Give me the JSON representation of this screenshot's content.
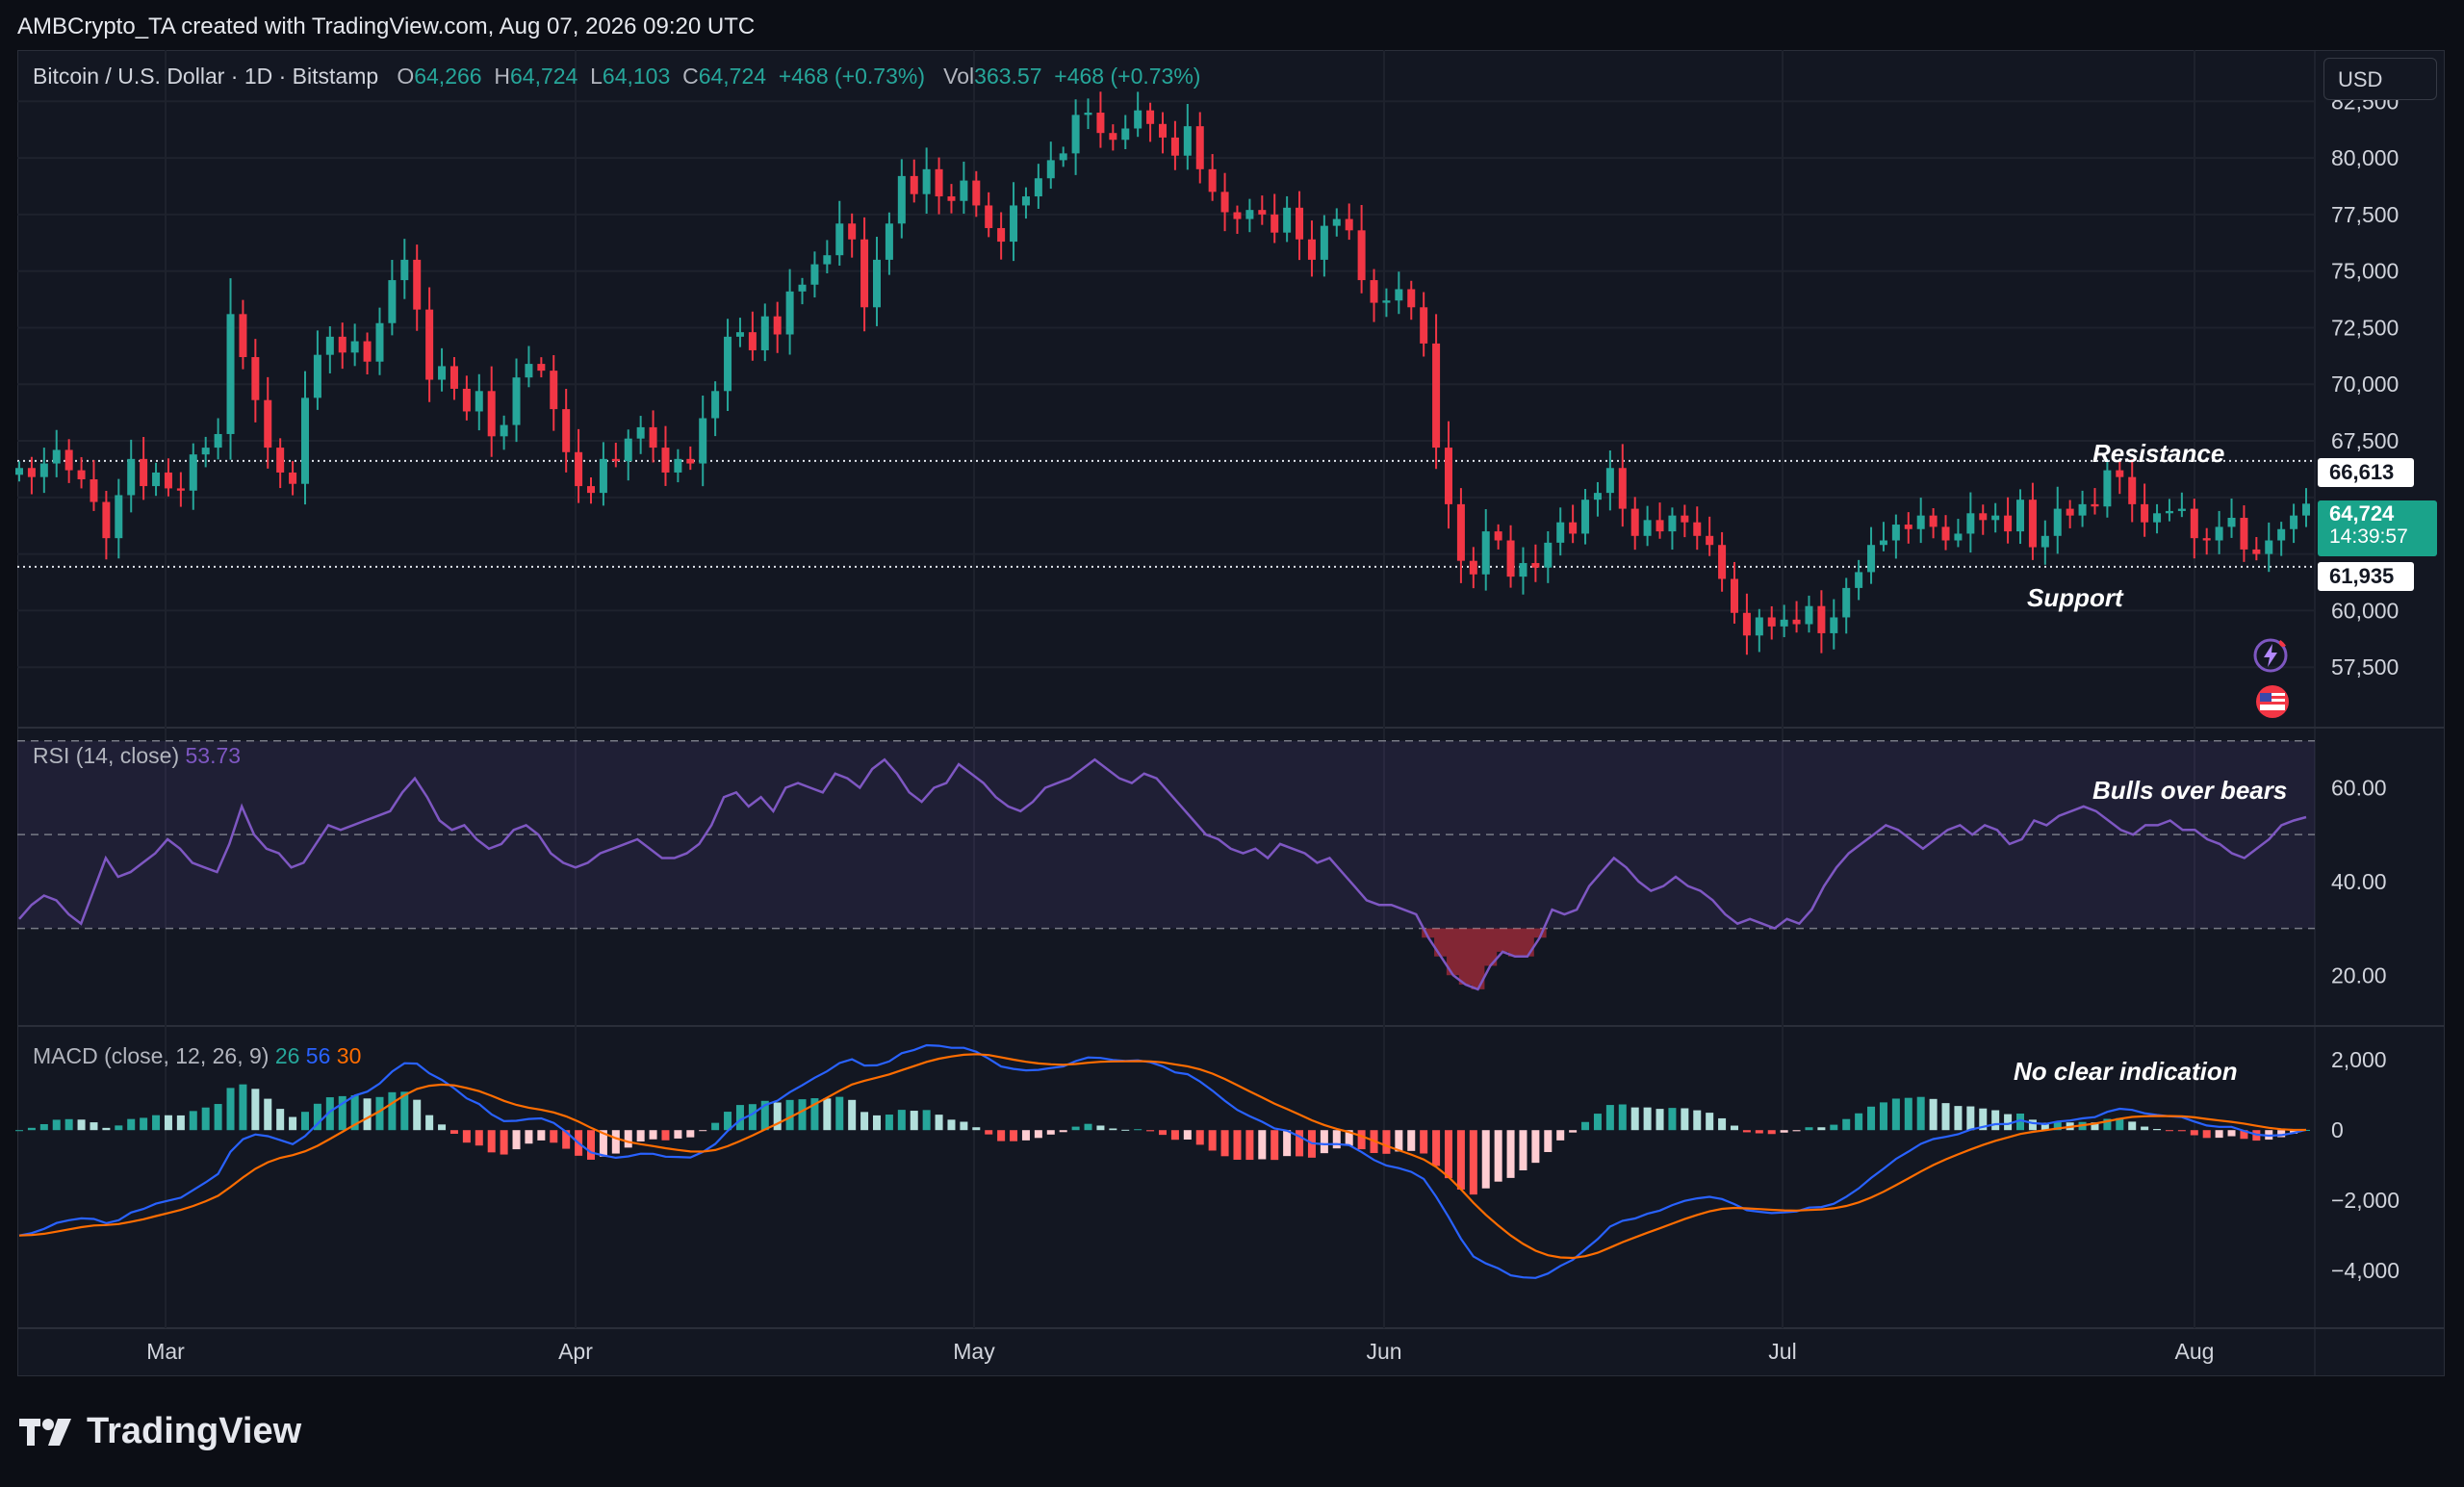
{
  "header": {
    "text": "AMBCrypto_TA created with TradingView.com, Aug 07, 2026 09:20 UTC"
  },
  "legend": {
    "symbol": "Bitcoin / U.S. Dollar · 1D · Bitstamp",
    "o_label": "O",
    "o": "64,266",
    "h_label": "H",
    "h": "64,724",
    "l_label": "L",
    "l": "64,103",
    "c_label": "C",
    "c": "64,724",
    "change": "+468 (+0.73%)",
    "vol_label": "Vol",
    "vol": "363.57",
    "vol_change": "+468 (+0.73%)"
  },
  "currency": "USD",
  "price_tags": {
    "resistance": "66,613",
    "support": "61,935",
    "last": "64,724",
    "countdown": "14:39:57"
  },
  "annotations": {
    "resistance": "Resistance",
    "support": "Support",
    "rsi": "Bulls over bears",
    "macd": "No clear indication"
  },
  "rsi_legend": {
    "label": "RSI (14, close)",
    "value": "53.73"
  },
  "macd_legend": {
    "label": "MACD (close, 12, 26, 9)",
    "v1": "26",
    "v2": "56",
    "v3": "30"
  },
  "footer": {
    "brand": "TradingView"
  },
  "colors": {
    "up": "#26a69a",
    "down": "#f23645",
    "rsi": "#7e57c2",
    "macd": "#2962ff",
    "signal": "#ff6d00",
    "hist_up": "#26a69a",
    "hist_down": "#ff5252"
  },
  "icons": [
    "lightning-icon",
    "us-flag-icon"
  ],
  "chart_data": [
    {
      "type": "candlestick",
      "title": "",
      "x_ticks": [
        "Mar",
        "Apr",
        "May",
        "Jun",
        "Jul",
        "Aug"
      ],
      "y_ticks": [
        57500,
        60000,
        62500,
        65000,
        67500,
        70000,
        72500,
        75000,
        77500,
        80000,
        82500
      ],
      "y_tick_labels": [
        "57,500",
        "60,000",
        "",
        "",
        "67,500",
        "70,000",
        "72,500",
        "75,000",
        "77,500",
        "80,000",
        "82,500"
      ],
      "ylim": [
        55000,
        84000
      ],
      "support": 61935,
      "resistance": 66613,
      "start_date": "2026-02-18",
      "end_date": "2026-08-07",
      "close": [
        66300,
        65900,
        66500,
        67100,
        66200,
        65800,
        64800,
        63200,
        65100,
        66700,
        65500,
        66100,
        65400,
        65300,
        66900,
        67200,
        67800,
        73100,
        71200,
        69300,
        67200,
        66100,
        65600,
        69400,
        71300,
        72100,
        71400,
        71900,
        71000,
        72700,
        74600,
        75500,
        73300,
        70200,
        70800,
        69800,
        68800,
        69700,
        67700,
        68200,
        70300,
        70900,
        70600,
        68900,
        67000,
        65500,
        65200,
        66700,
        66600,
        67600,
        68100,
        67200,
        66100,
        66700,
        66500,
        68500,
        69700,
        72100,
        72300,
        71500,
        73000,
        72200,
        74100,
        74400,
        75300,
        75700,
        77100,
        76400,
        73400,
        75500,
        77100,
        79200,
        78400,
        79500,
        78300,
        78100,
        79000,
        77900,
        76900,
        76300,
        77900,
        78300,
        79100,
        79900,
        80200,
        81900,
        82000,
        81100,
        80800,
        81300,
        82100,
        81500,
        80900,
        80100,
        81400,
        79500,
        78500,
        77600,
        77300,
        77700,
        77500,
        76700,
        77800,
        76400,
        75500,
        77000,
        77300,
        76800,
        74600,
        73600,
        73700,
        74200,
        73400,
        71800,
        67200,
        64700,
        62200,
        61600,
        63500,
        63100,
        61500,
        62100,
        61900,
        63000,
        63900,
        63400,
        64900,
        65200,
        66300,
        64500,
        63300,
        64000,
        63500,
        64200,
        63900,
        63300,
        62900,
        61400,
        59900,
        58900,
        59700,
        59300,
        59600,
        59400,
        60200,
        59000,
        59700,
        61000,
        61700,
        62900,
        63100,
        63800,
        63600,
        64200,
        63700,
        63100,
        63400,
        64300,
        64000,
        64200,
        63500,
        64900,
        62800,
        63300,
        64500,
        64200,
        64700,
        64600,
        66200,
        65900,
        64700,
        63900,
        64300,
        64400,
        64500,
        63200,
        63100,
        63700,
        64100,
        62700,
        62500,
        63100,
        63600,
        64200,
        64724
      ],
      "volume": "363.57"
    },
    {
      "type": "line",
      "title": "RSI (14, close)",
      "last_value": 53.73,
      "y_ticks": [
        20,
        40,
        60
      ],
      "ylim": [
        10,
        72
      ],
      "bands": [
        30,
        50,
        70
      ],
      "values": [
        32,
        35,
        37,
        36,
        33,
        31,
        38,
        45,
        41,
        42,
        44,
        46,
        49,
        47,
        44,
        43,
        42,
        48,
        56,
        50,
        47,
        46,
        43,
        44,
        48,
        52,
        51,
        52,
        53,
        54,
        55,
        59,
        62,
        58,
        53,
        51,
        52,
        49,
        47,
        48,
        51,
        52,
        50,
        46,
        44,
        43,
        44,
        46,
        47,
        48,
        49,
        47,
        45,
        45,
        46,
        48,
        52,
        58,
        59,
        56,
        58,
        55,
        60,
        61,
        60,
        59,
        63,
        62,
        60,
        64,
        66,
        63,
        59,
        57,
        60,
        61,
        65,
        63,
        61,
        58,
        56,
        55,
        57,
        60,
        61,
        62,
        64,
        66,
        64,
        62,
        61,
        63,
        62,
        59,
        56,
        53,
        50,
        49,
        47,
        46,
        47,
        45,
        48,
        47,
        46,
        44,
        45,
        42,
        39,
        36,
        35,
        35,
        34,
        33,
        28,
        24,
        20,
        18,
        17,
        22,
        25,
        24,
        24,
        28,
        34,
        33,
        34,
        39,
        42,
        45,
        43,
        40,
        38,
        39,
        41,
        39,
        38,
        36,
        33,
        31,
        32,
        31,
        30,
        32,
        31,
        34,
        39,
        43,
        46,
        48,
        50,
        52,
        51,
        49,
        47,
        49,
        51,
        52,
        50,
        52,
        51,
        48,
        49,
        53,
        52,
        54,
        55,
        56,
        55,
        53,
        51,
        50,
        52,
        52,
        53,
        51,
        51,
        49,
        48,
        46,
        45,
        47,
        49,
        52,
        53,
        53.73
      ]
    },
    {
      "type": "bar+line",
      "title": "MACD (close, 12, 26, 9)",
      "y_ticks": [
        -4000,
        -2000,
        0,
        2000
      ],
      "y_tick_labels": [
        "−4,000",
        "−2,000",
        "0",
        "2,000"
      ],
      "ylim": [
        -5500,
        2800
      ],
      "macd_last": 26,
      "signal_last": 56,
      "histogram_last": 30
    }
  ]
}
